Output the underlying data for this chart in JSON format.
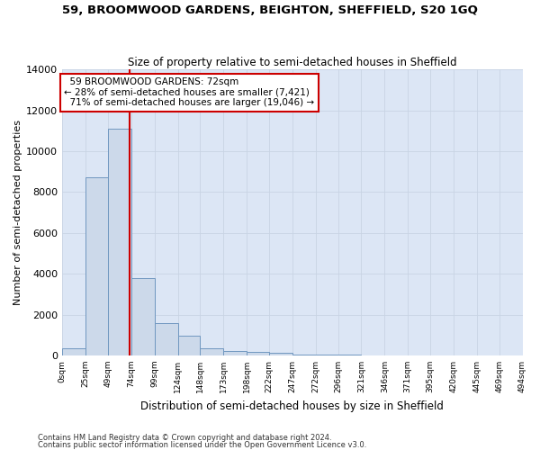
{
  "title1": "59, BROOMWOOD GARDENS, BEIGHTON, SHEFFIELD, S20 1GQ",
  "title2": "Size of property relative to semi-detached houses in Sheffield",
  "xlabel": "Distribution of semi-detached houses by size in Sheffield",
  "ylabel": "Number of semi-detached properties",
  "footnote1": "Contains HM Land Registry data © Crown copyright and database right 2024.",
  "footnote2": "Contains public sector information licensed under the Open Government Licence v3.0.",
  "property_size": 72,
  "property_label": "59 BROOMWOOD GARDENS: 72sqm",
  "pct_smaller": 28,
  "pct_smaller_count": "7,421",
  "pct_larger": 71,
  "pct_larger_count": "19,046",
  "bin_edges": [
    0,
    25,
    49,
    74,
    99,
    124,
    148,
    173,
    198,
    222,
    247,
    272,
    296,
    321,
    346,
    371,
    395,
    420,
    445,
    469,
    494
  ],
  "bin_labels": [
    "0sqm",
    "25sqm",
    "49sqm",
    "74sqm",
    "99sqm",
    "124sqm",
    "148sqm",
    "173sqm",
    "198sqm",
    "222sqm",
    "247sqm",
    "272sqm",
    "296sqm",
    "321sqm",
    "346sqm",
    "371sqm",
    "395sqm",
    "420sqm",
    "445sqm",
    "469sqm",
    "494sqm"
  ],
  "counts": [
    350,
    8700,
    11100,
    3800,
    1580,
    950,
    370,
    230,
    160,
    110,
    50,
    30,
    20,
    10,
    0,
    0,
    0,
    0,
    0,
    0
  ],
  "bar_color": "#ccd9ea",
  "bar_edge_color": "#7097c0",
  "red_line_color": "#cc0000",
  "annotation_box_color": "#cc0000",
  "ylim": [
    0,
    14000
  ],
  "yticks": [
    0,
    2000,
    4000,
    6000,
    8000,
    10000,
    12000,
    14000
  ],
  "grid_color": "#c8d4e4",
  "bg_color": "#dce6f5"
}
